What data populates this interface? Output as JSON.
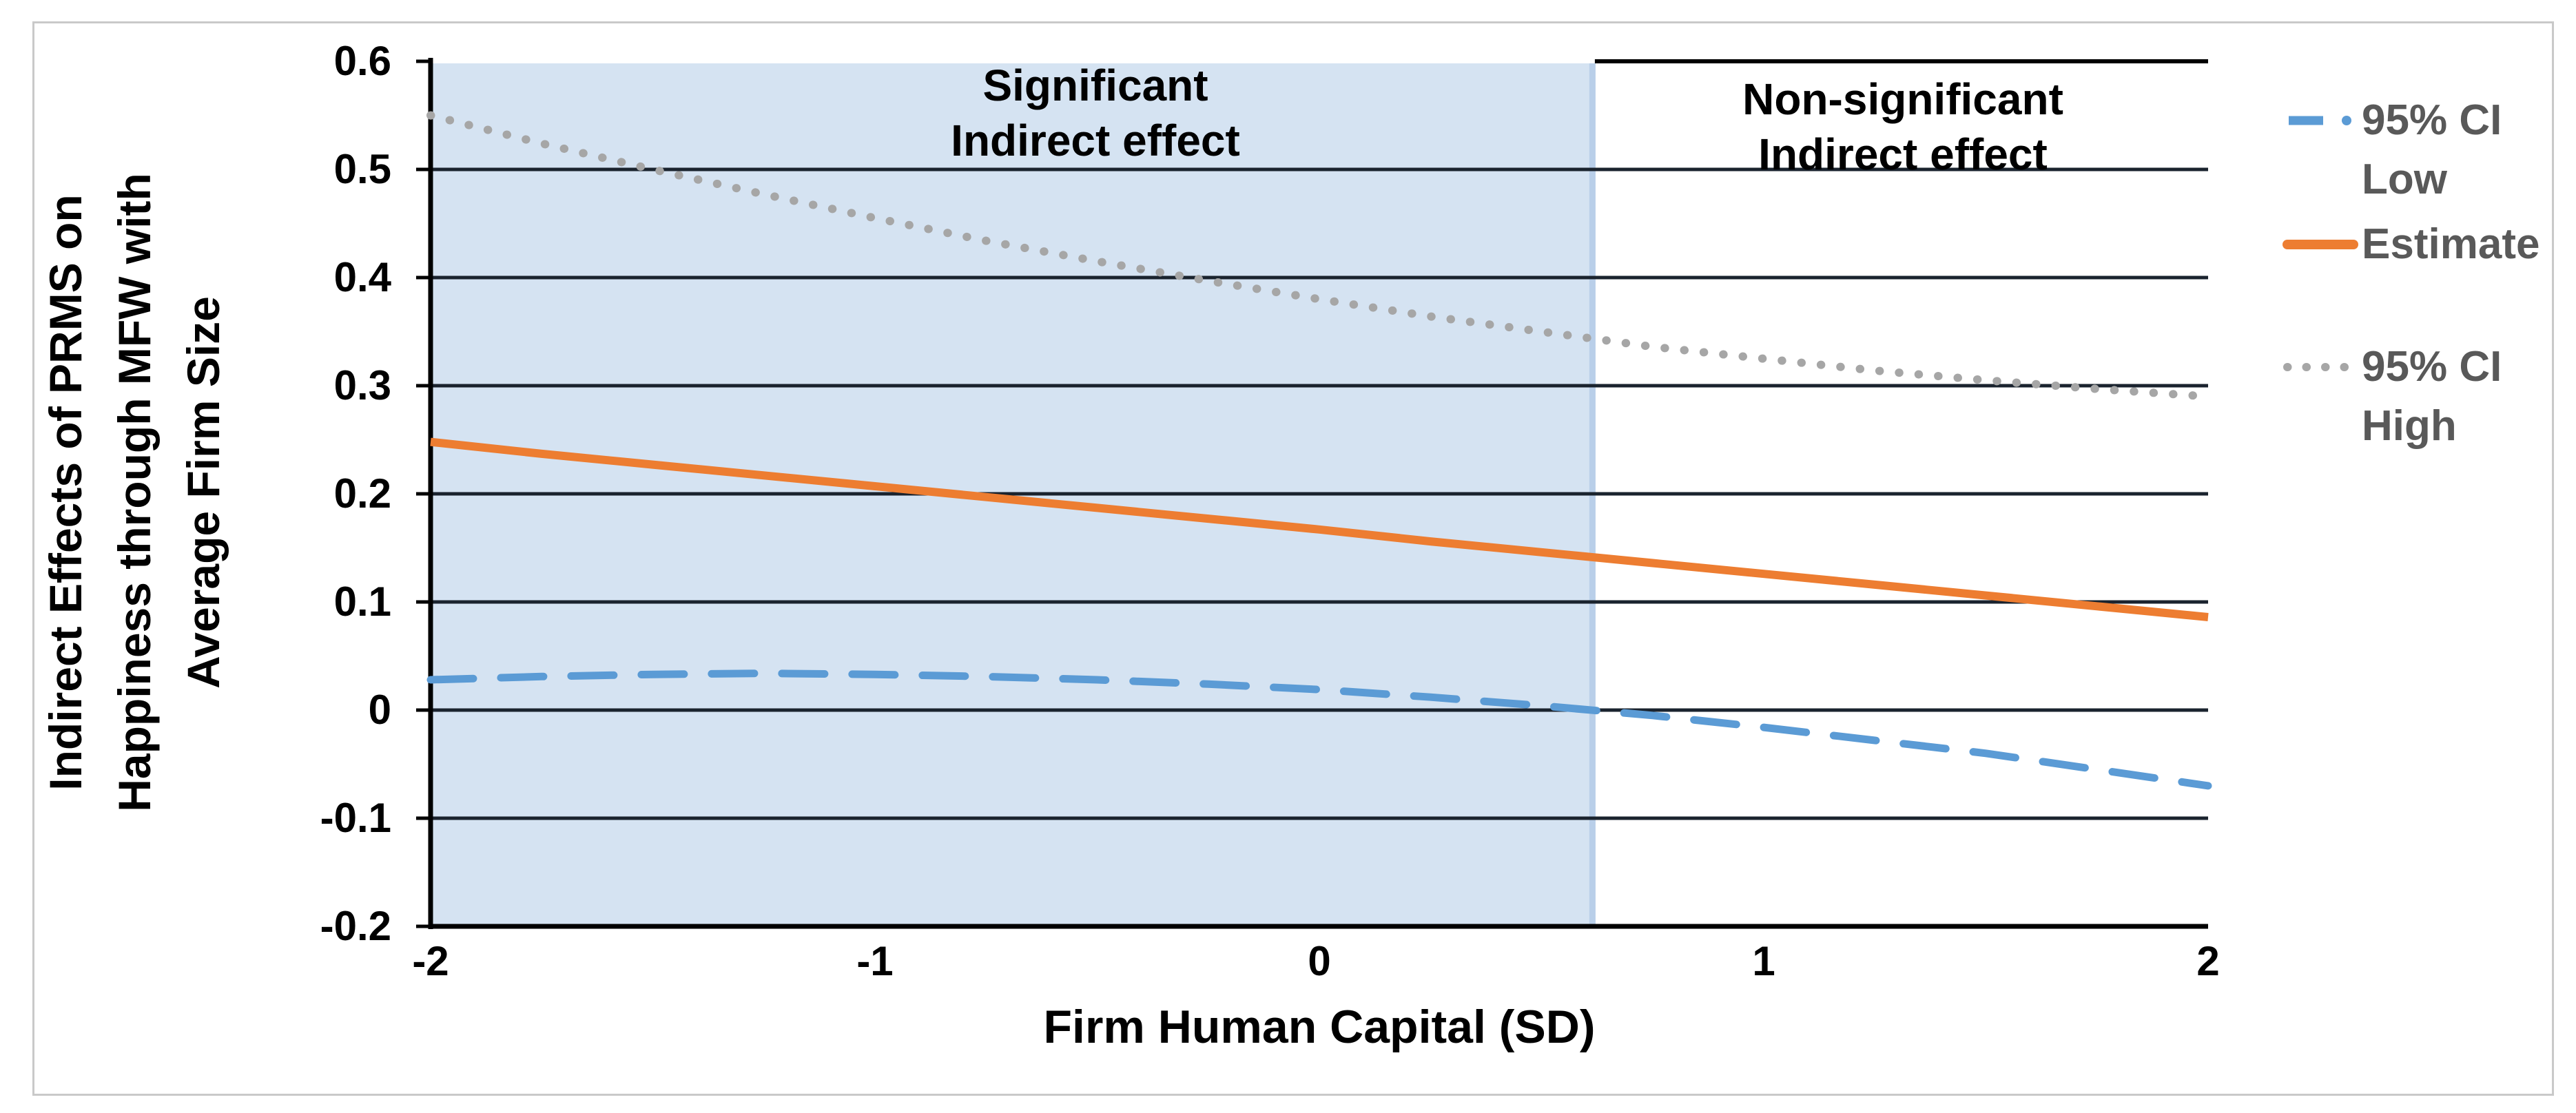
{
  "chart_data": {
    "type": "line",
    "xlabel": "Firm Human Capital (SD)",
    "ylabel": "Indirect Effects of PRMS on Happiness through MFW with Average Firm Size",
    "ylabel_lines": [
      "Indirect Effects of PRMS on",
      "Happiness through MFW with",
      "Average Firm Size"
    ],
    "xlim": [
      -2,
      2
    ],
    "ylim": [
      -0.2,
      0.6
    ],
    "grid": true,
    "x_ticks": [
      "-2",
      "-1",
      "0",
      "1",
      "2"
    ],
    "x_tick_values": [
      -2,
      -1,
      0,
      1,
      2
    ],
    "y_ticks": [
      "0.6",
      "0.5",
      "0.4",
      "0.3",
      "0.2",
      "0.1",
      "0",
      "-0.1",
      "-0.2"
    ],
    "y_tick_values": [
      0.6,
      0.5,
      0.4,
      0.3,
      0.2,
      0.1,
      0,
      -0.1,
      -0.2
    ],
    "x": [
      -2,
      -1.75,
      -1.5,
      -1.25,
      -1,
      -0.75,
      -0.5,
      -0.25,
      0,
      0.25,
      0.5,
      0.75,
      1,
      1.25,
      1.5,
      1.75,
      2
    ],
    "series": [
      {
        "name": "95% CI Low",
        "label_lines": [
          "95% CI",
          "Low"
        ],
        "style": "dashed",
        "color": "#5B9BD5",
        "values": [
          0.028,
          0.031,
          0.033,
          0.034,
          0.033,
          0.031,
          0.028,
          0.024,
          0.019,
          0.012,
          0.004,
          -0.005,
          -0.016,
          -0.028,
          -0.04,
          -0.055,
          -0.07
        ]
      },
      {
        "name": "Estimate",
        "label_lines": [
          "Estimate"
        ],
        "style": "solid",
        "color": "#ED7D31",
        "values": [
          0.248,
          0.237,
          0.227,
          0.217,
          0.207,
          0.197,
          0.187,
          0.177,
          0.167,
          0.156,
          0.146,
          0.136,
          0.126,
          0.116,
          0.106,
          0.096,
          0.086
        ]
      },
      {
        "name": "95% CI High",
        "label_lines": [
          "95% CI",
          "High"
        ],
        "style": "dotted",
        "color": "#A6A6A6",
        "values": [
          0.55,
          0.524,
          0.5,
          0.477,
          0.455,
          0.434,
          0.415,
          0.397,
          0.38,
          0.364,
          0.35,
          0.336,
          0.325,
          0.314,
          0.305,
          0.297,
          0.29
        ]
      }
    ],
    "legend_position": "right",
    "shaded_region": {
      "x_start": -2,
      "x_end": 0.62,
      "fill": "#D5E3F2",
      "edge": "#B9CFE9",
      "label_lines": [
        "Significant",
        "Indirect effect"
      ]
    },
    "unshaded_region": {
      "x_start": 0.62,
      "x_end": 2,
      "label_lines": [
        "Non-significant",
        "Indirect effect"
      ]
    },
    "colors": {
      "gridline": "#1A232E",
      "axis": "#000000",
      "legend_text": "#595959",
      "figure_border": "#C9C9C9"
    }
  }
}
